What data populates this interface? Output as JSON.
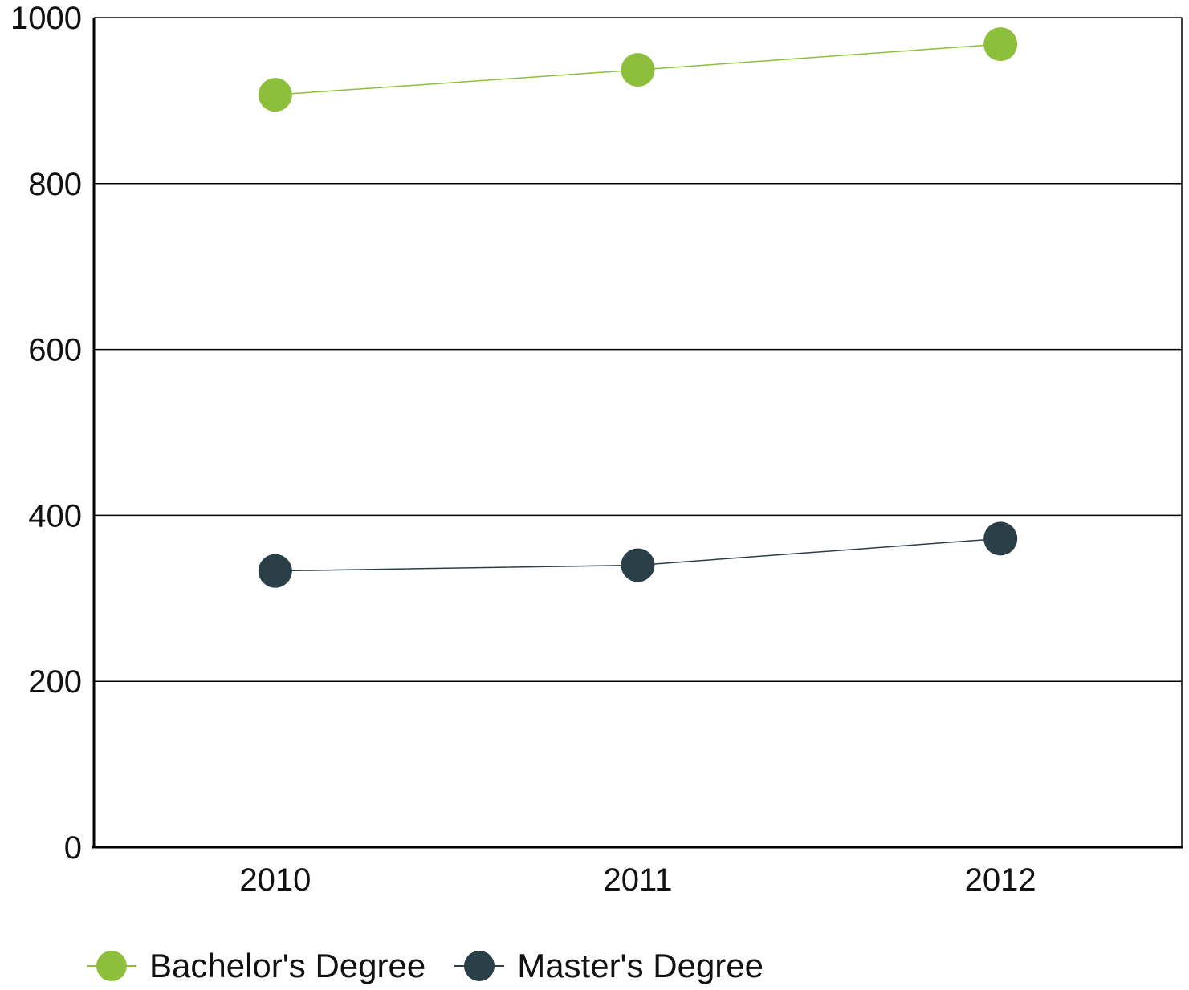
{
  "chart_data": {
    "type": "line",
    "title": "",
    "xlabel": "",
    "ylabel": "",
    "categories": [
      "2010",
      "2011",
      "2012"
    ],
    "ylim": [
      0,
      1000
    ],
    "yticks": [
      0,
      200,
      400,
      600,
      800,
      1000
    ],
    "grid": true,
    "legend_position": "bottom-left",
    "series": [
      {
        "name": "Bachelor's Degree",
        "values": [
          907,
          937,
          968
        ],
        "color": "#8dbe3c"
      },
      {
        "name": "Master's Degree",
        "values": [
          333,
          340,
          372
        ],
        "color": "#2b3f48"
      }
    ]
  }
}
